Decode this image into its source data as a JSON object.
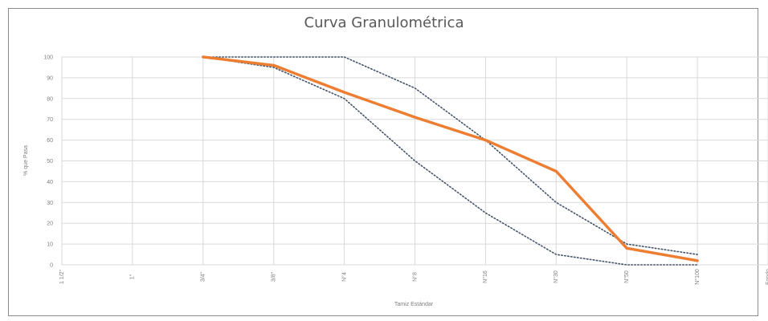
{
  "chart_data": {
    "type": "line",
    "title": "Curva Granulométrica",
    "xlabel": "Tamiz Estándar",
    "ylabel": "% que Pasa",
    "categories": [
      "1 1/2\"",
      "1\"",
      "3/4\"",
      "3/8\"",
      "N°4",
      "N°8",
      "N°16",
      "N°30",
      "N°50",
      "N°100",
      "Fondo"
    ],
    "ylim": [
      0,
      100
    ],
    "yticks": [
      0,
      10,
      20,
      30,
      40,
      50,
      60,
      70,
      80,
      90,
      100
    ],
    "grid": true,
    "series": [
      {
        "style": "solid-thick",
        "color": "#ED7D31",
        "values": [
          null,
          null,
          100,
          96,
          83,
          71,
          60,
          45,
          8,
          2,
          null
        ]
      },
      {
        "style": "dotted",
        "color": "#44546A",
        "values": [
          null,
          null,
          100,
          100,
          100,
          85,
          60,
          30,
          10,
          5,
          null
        ]
      },
      {
        "style": "dotted",
        "color": "#44546A",
        "values": [
          null,
          null,
          100,
          95,
          80,
          50,
          25,
          5,
          0,
          0,
          null
        ]
      }
    ]
  }
}
